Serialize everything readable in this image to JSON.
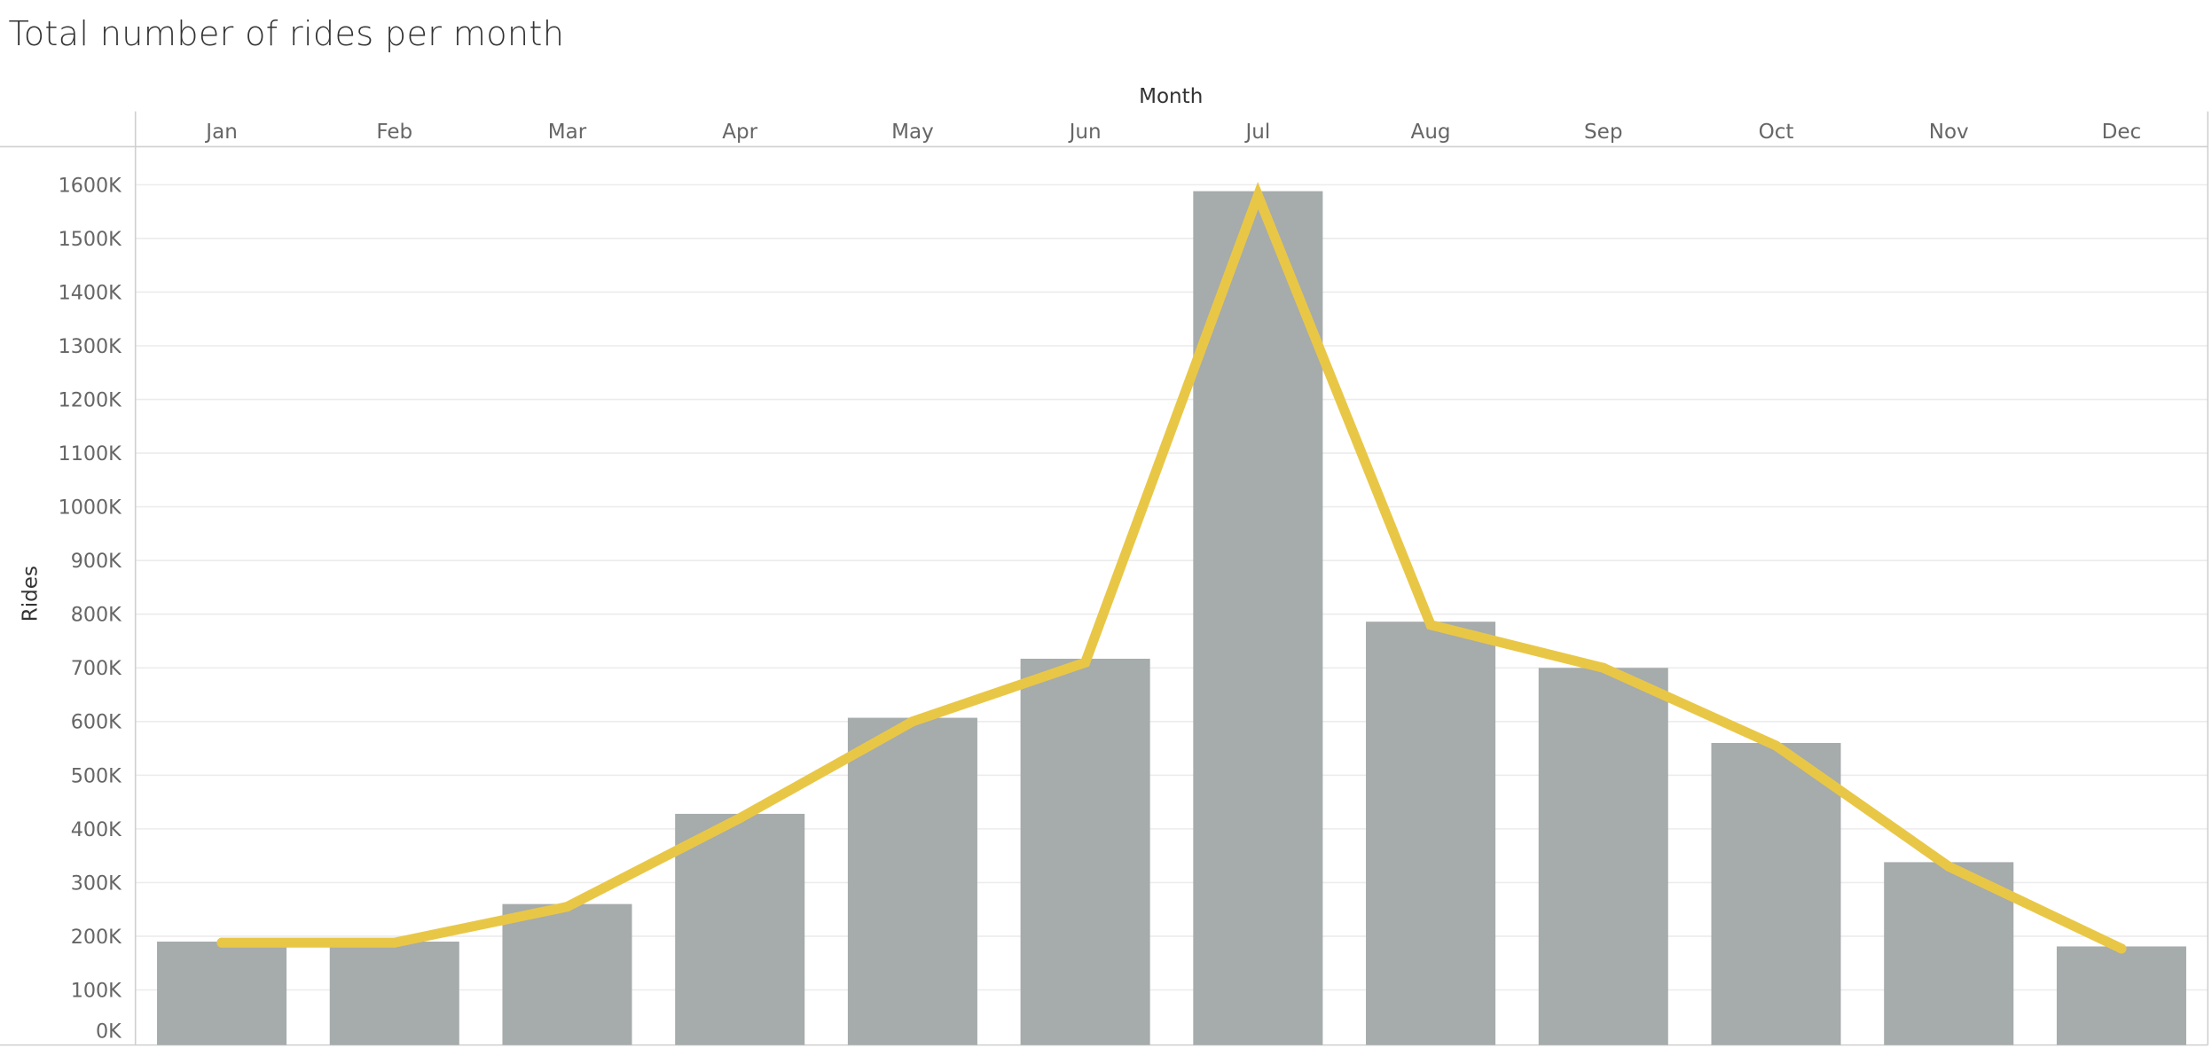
{
  "chart_data": {
    "type": "bar",
    "title": "Total number of rides per month",
    "xlabel": "Month",
    "ylabel": "Rides",
    "categories": [
      "Jan",
      "Feb",
      "Mar",
      "Apr",
      "May",
      "Jun",
      "Jul",
      "Aug",
      "Sep",
      "Oct",
      "Nov",
      "Dec"
    ],
    "series": [
      {
        "type": "bar",
        "color": "#a6abab",
        "values": [
          190000,
          190000,
          260000,
          428000,
          607000,
          717000,
          1588000,
          786000,
          700000,
          560000,
          338000,
          181000
        ]
      },
      {
        "type": "line",
        "color": "#e9c746",
        "values": [
          188000,
          188000,
          255000,
          420000,
          600000,
          710000,
          1580000,
          780000,
          700000,
          555000,
          330000,
          177000
        ]
      }
    ],
    "ylim": [
      0,
      1600000
    ],
    "yticks": [
      "0K",
      "100K",
      "200K",
      "300K",
      "400K",
      "500K",
      "600K",
      "700K",
      "800K",
      "900K",
      "1000K",
      "1100K",
      "1200K",
      "1300K",
      "1400K",
      "1500K",
      "1600K"
    ],
    "grid": true,
    "gridline_color": "#ececec",
    "legend": "none"
  }
}
